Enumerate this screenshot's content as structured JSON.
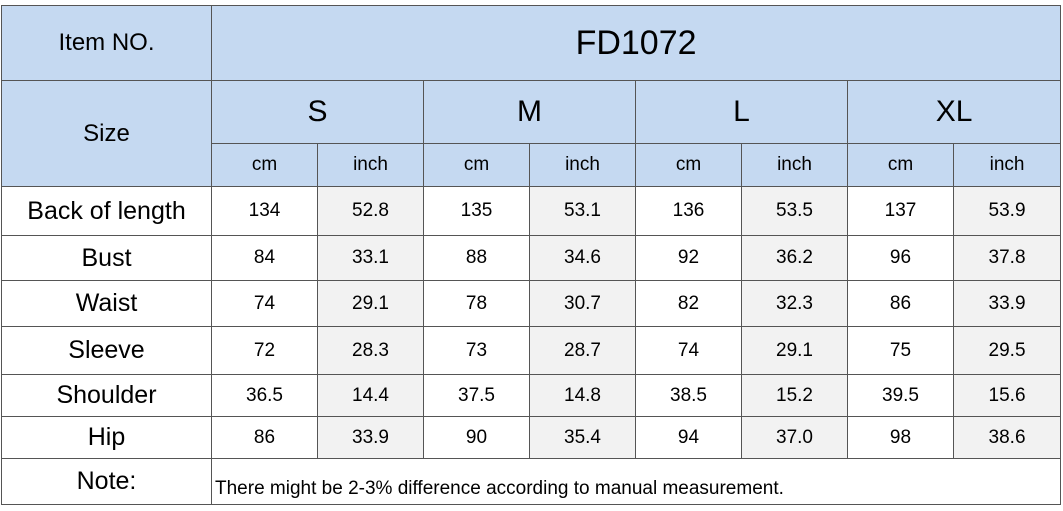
{
  "header": {
    "item_label": "Item NO.",
    "item_value": "FD1072",
    "size_label": "Size"
  },
  "sizes": [
    "S",
    "M",
    "L",
    "XL"
  ],
  "units": [
    "cm",
    "inch"
  ],
  "rows": [
    {
      "label": "Back of length",
      "values": [
        "134",
        "52.8",
        "135",
        "53.1",
        "136",
        "53.5",
        "137",
        "53.9"
      ]
    },
    {
      "label": "Bust",
      "values": [
        "84",
        "33.1",
        "88",
        "34.6",
        "92",
        "36.2",
        "96",
        "37.8"
      ]
    },
    {
      "label": "Waist",
      "values": [
        "74",
        "29.1",
        "78",
        "30.7",
        "82",
        "32.3",
        "86",
        "33.9"
      ]
    },
    {
      "label": "Sleeve",
      "values": [
        "72",
        "28.3",
        "73",
        "28.7",
        "74",
        "29.1",
        "75",
        "29.5"
      ]
    },
    {
      "label": "Shoulder",
      "values": [
        "36.5",
        "14.4",
        "37.5",
        "14.8",
        "38.5",
        "15.2",
        "39.5",
        "15.6"
      ]
    },
    {
      "label": "Hip",
      "values": [
        "86",
        "33.9",
        "90",
        "35.4",
        "94",
        "37.0",
        "98",
        "38.6"
      ]
    }
  ],
  "note": {
    "label": "Note:",
    "text": "There might be 2-3% difference according to manual measurement."
  },
  "colors": {
    "header_fill": "#c5d9f1",
    "alt_cell_fill": "#f2f2f2",
    "border": "#555555"
  }
}
